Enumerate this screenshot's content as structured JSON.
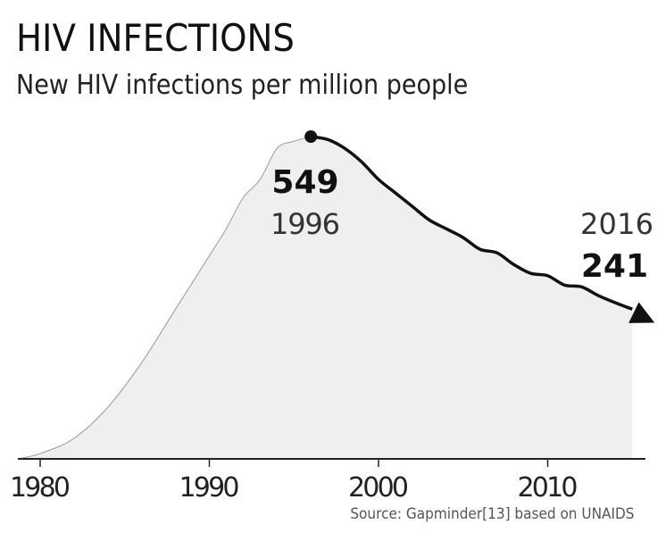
{
  "header": {
    "title": "HIV INFECTIONS",
    "subtitle": "New HIV infections per million people"
  },
  "source": "Source: Gapminder[13] based on UNAIDS",
  "chart_data": {
    "type": "area",
    "title": "HIV INFECTIONS",
    "subtitle": "New HIV infections per million people",
    "xlabel": "",
    "ylabel": "New HIV infections per million people",
    "xlim": [
      1978.7,
      2016
    ],
    "ylim": [
      0,
      549
    ],
    "xticks": [
      1980,
      1990,
      2000,
      2010
    ],
    "xtick_labels": [
      "1980",
      "1990",
      "2000",
      "2010"
    ],
    "x": [
      1978.7,
      1980,
      1982,
      1984,
      1986,
      1988,
      1990,
      1991,
      1992,
      1993,
      1994,
      1995,
      1996,
      1997,
      1998,
      1999,
      2000,
      2001,
      2002,
      2003,
      2004,
      2005,
      2006,
      2007,
      2008,
      2009,
      2010,
      2011,
      2012,
      2013,
      2014,
      2015,
      2016
    ],
    "y": [
      0,
      9,
      35,
      88,
      164,
      255,
      346,
      392,
      445,
      476,
      529,
      541,
      549,
      544,
      529,
      506,
      476,
      453,
      430,
      407,
      392,
      377,
      357,
      351,
      331,
      316,
      312,
      296,
      293,
      278,
      266,
      255,
      241
    ],
    "annotations": [
      {
        "x": 1996,
        "value": "549",
        "year": "1996"
      },
      {
        "x": 2016,
        "value": "241",
        "year": "2016"
      }
    ],
    "grid": false,
    "colors": {
      "fill": "#efefef",
      "early_line": "#999999",
      "highlight_line": "#111111"
    }
  }
}
